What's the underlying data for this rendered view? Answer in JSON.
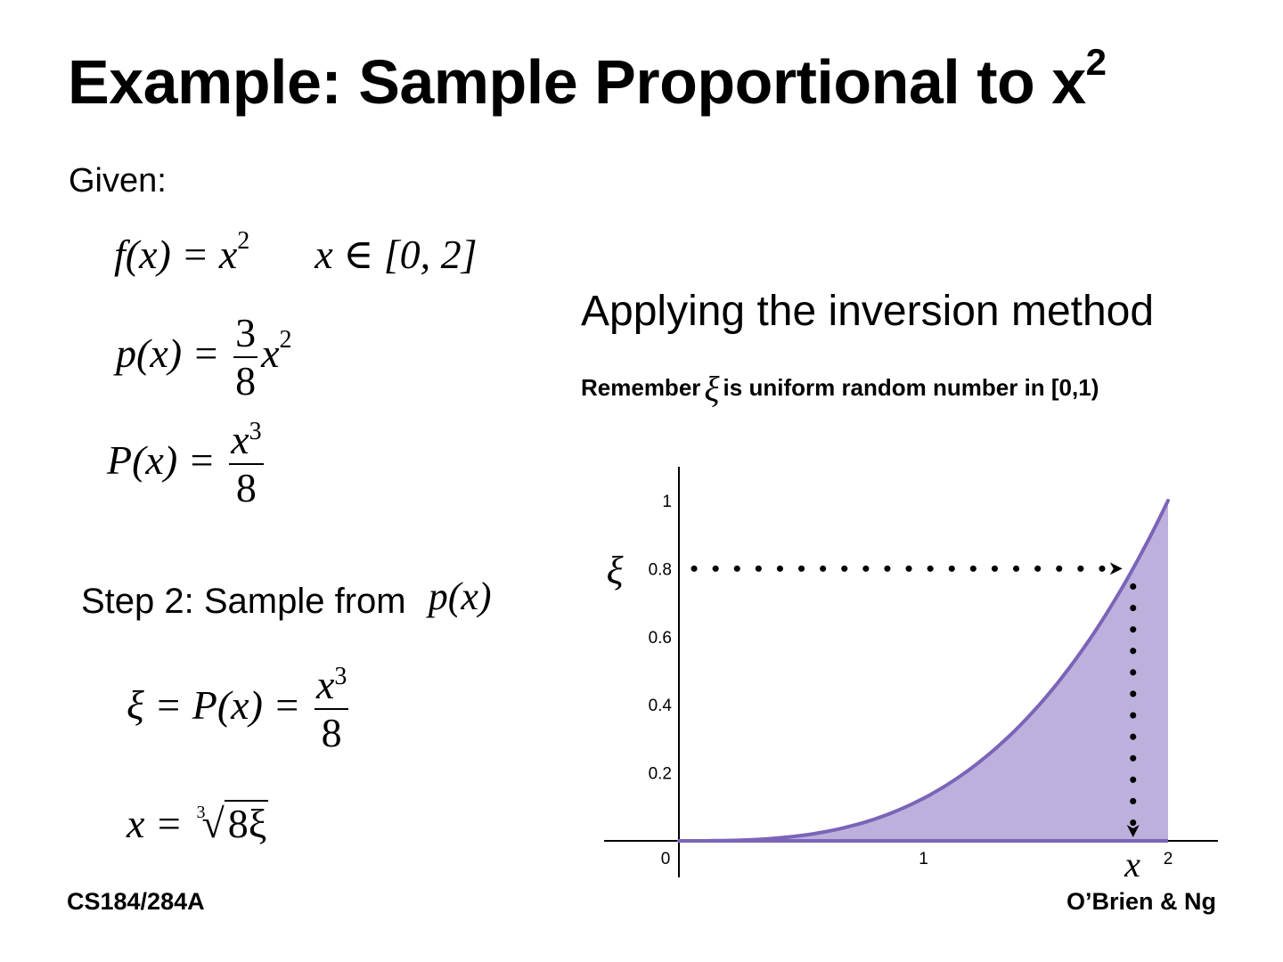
{
  "slide": {
    "title_main": "Example: Sample Proportional to x",
    "title_sup": "2",
    "given_label": "Given:",
    "section_heading": "Applying the inversion method",
    "remember_prefix": "Remember",
    "remember_symbol": "ξ",
    "remember_suffix": "is uniform random number in [0,1)",
    "step2_label": "Step 2: Sample from"
  },
  "equations": {
    "f_lhs": "f(x) = x",
    "f_exp": "2",
    "domain": "x ∈ [0, 2]",
    "p_lhs": "p(x) =",
    "p_num": "3",
    "p_den": "8",
    "p_tail": "x",
    "p_exp": "2",
    "P_lhs": "P(x) =",
    "P_num": "x",
    "P_num_exp": "3",
    "P_den": "8",
    "step2_expr": "p(x)",
    "xi_lhs": "ξ = P(x) =",
    "xi_num": "x",
    "xi_num_exp": "3",
    "xi_den": "8",
    "x_lhs": "x =",
    "root_index": "3",
    "root_radicand": "8ξ"
  },
  "footer": {
    "left": "CS184/284A",
    "right": "O’Brien & Ng"
  },
  "colors": {
    "curve": "#7b64b8",
    "fill": "#bdb0dc",
    "axis": "#000000"
  },
  "chart_data": {
    "type": "area",
    "function": "P(x) = x^3/8",
    "x": [
      0,
      0.25,
      0.5,
      0.75,
      1,
      1.25,
      1.5,
      1.75,
      1.9,
      2
    ],
    "y": [
      0,
      0.002,
      0.016,
      0.053,
      0.125,
      0.244,
      0.422,
      0.67,
      0.857,
      1
    ],
    "xlim": [
      0,
      2
    ],
    "ylim": [
      0,
      1
    ],
    "x_ticks": [
      "0",
      "1",
      "2"
    ],
    "y_ticks": [
      "1",
      "0.8",
      "0.6",
      "0.4",
      "0.2"
    ],
    "xlabel": "x",
    "ylabel": "ξ",
    "example_xi": 0.8,
    "example_x": 1.857
  }
}
